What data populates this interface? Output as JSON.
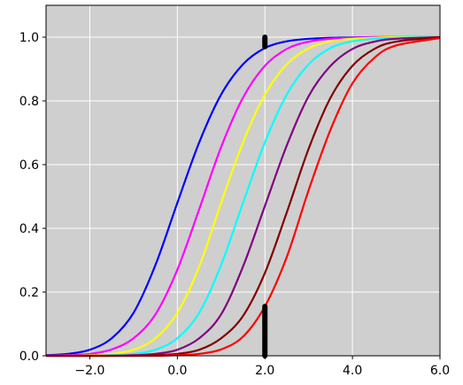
{
  "chart_data": {
    "type": "line",
    "title": "",
    "xlabel": "",
    "ylabel": "",
    "xlim": [
      -3.0,
      6.0
    ],
    "ylim": [
      0.0,
      1.1
    ],
    "grid": true,
    "background": "#cfcfcf",
    "grid_color": "#ffffff",
    "x_ticks": [
      {
        "value": -2.0,
        "label": "−2.0"
      },
      {
        "value": 0.0,
        "label": "0.0"
      },
      {
        "value": 2.0,
        "label": "2.0"
      },
      {
        "value": 4.0,
        "label": "4.0"
      },
      {
        "value": 6.0,
        "label": "6.0"
      }
    ],
    "y_ticks": [
      {
        "value": 0.0,
        "label": "0.0"
      },
      {
        "value": 0.2,
        "label": "0.2"
      },
      {
        "value": 0.4,
        "label": "0.4"
      },
      {
        "value": 0.6,
        "label": "0.6"
      },
      {
        "value": 0.8,
        "label": "0.8"
      },
      {
        "value": 1.0,
        "label": "1.0"
      }
    ],
    "series": [
      {
        "color": "#0000ff",
        "x": [
          -3.0,
          -2.5,
          -2.0,
          -1.5,
          -1.0,
          -0.5,
          0.0,
          0.5,
          1.0,
          1.5,
          2.0,
          2.5,
          3.0,
          3.5,
          4.0,
          4.5,
          5.0,
          6.0
        ],
        "y": [
          0.002,
          0.006,
          0.019,
          0.055,
          0.135,
          0.285,
          0.48,
          0.67,
          0.82,
          0.915,
          0.966,
          0.987,
          0.995,
          0.998,
          0.999,
          1.0,
          1.0,
          1.0
        ]
      },
      {
        "color": "#ff00ff",
        "x": [
          -3.0,
          -2.5,
          -2.0,
          -1.5,
          -1.0,
          -0.5,
          0.0,
          0.5,
          1.0,
          1.5,
          2.0,
          2.5,
          3.0,
          3.5,
          4.0,
          4.5,
          5.0,
          6.0
        ],
        "y": [
          0.0,
          0.002,
          0.006,
          0.02,
          0.055,
          0.13,
          0.27,
          0.46,
          0.655,
          0.81,
          0.91,
          0.963,
          0.986,
          0.995,
          0.998,
          1.0,
          1.0,
          1.0
        ]
      },
      {
        "color": "#ffff00",
        "x": [
          -3.0,
          -2.5,
          -2.0,
          -1.5,
          -1.0,
          -0.5,
          0.0,
          0.5,
          1.0,
          1.5,
          2.0,
          2.5,
          3.0,
          3.5,
          4.0,
          4.5,
          5.0,
          6.0
        ],
        "y": [
          0.0,
          0.0,
          0.002,
          0.006,
          0.019,
          0.055,
          0.135,
          0.28,
          0.48,
          0.67,
          0.82,
          0.915,
          0.965,
          0.987,
          0.995,
          0.998,
          1.0,
          1.0
        ]
      },
      {
        "color": "#00ffff",
        "x": [
          -3.0,
          -2.5,
          -2.0,
          -1.5,
          -1.0,
          -0.5,
          0.0,
          0.5,
          1.0,
          1.5,
          2.0,
          2.5,
          3.0,
          3.5,
          4.0,
          4.5,
          5.0,
          6.0
        ],
        "y": [
          0.0,
          0.0,
          0.0,
          0.002,
          0.006,
          0.019,
          0.055,
          0.135,
          0.285,
          0.48,
          0.67,
          0.82,
          0.915,
          0.966,
          0.987,
          0.995,
          0.998,
          1.0
        ]
      },
      {
        "color": "#800080",
        "x": [
          -3.0,
          -2.5,
          -2.0,
          -1.5,
          -1.0,
          -0.5,
          0.0,
          0.5,
          1.0,
          1.5,
          2.0,
          2.5,
          3.0,
          3.5,
          4.0,
          4.5,
          5.0,
          6.0
        ],
        "y": [
          0.0,
          0.0,
          0.0,
          0.0,
          0.002,
          0.006,
          0.019,
          0.055,
          0.13,
          0.28,
          0.47,
          0.66,
          0.815,
          0.91,
          0.963,
          0.986,
          0.995,
          1.0
        ]
      },
      {
        "color": "#800000",
        "x": [
          -3.0,
          -2.5,
          -2.0,
          -1.5,
          -1.0,
          -0.5,
          0.0,
          0.5,
          1.0,
          1.5,
          2.0,
          2.5,
          3.0,
          3.5,
          4.0,
          4.5,
          5.0,
          6.0
        ],
        "y": [
          0.0,
          0.0,
          0.0,
          0.0,
          0.0,
          0.002,
          0.006,
          0.019,
          0.055,
          0.125,
          0.26,
          0.45,
          0.65,
          0.81,
          0.91,
          0.963,
          0.986,
          1.0
        ]
      },
      {
        "color": "#ff0000",
        "x": [
          -3.0,
          -2.5,
          -2.0,
          -1.5,
          -1.0,
          -0.5,
          0.0,
          0.5,
          1.0,
          1.5,
          2.0,
          2.5,
          3.0,
          3.5,
          4.0,
          4.5,
          5.0,
          6.0
        ],
        "y": [
          0.0,
          0.0,
          0.0,
          0.0,
          0.0,
          0.0,
          0.002,
          0.006,
          0.02,
          0.06,
          0.155,
          0.31,
          0.52,
          0.71,
          0.855,
          0.935,
          0.974,
          0.997
        ]
      }
    ],
    "markers": [
      {
        "color": "#000000",
        "x": [
          2.0,
          2.0
        ],
        "y": [
          0.97,
          1.0
        ]
      },
      {
        "color": "#000000",
        "x": [
          2.0,
          2.0
        ],
        "y": [
          0.0,
          0.155
        ]
      }
    ]
  }
}
